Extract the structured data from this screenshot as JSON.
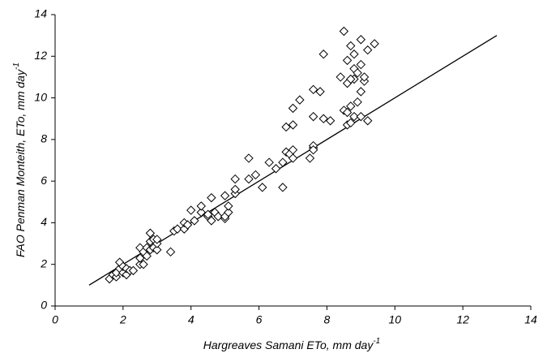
{
  "chart_data": {
    "type": "scatter",
    "xlabel": {
      "text": "Hargreaves Samani ETo, mm day",
      "sup": "-1"
    },
    "ylabel": {
      "text": "FAO Penman Monteith, ETo, mm day",
      "sup": "-1"
    },
    "xlim": [
      0,
      14
    ],
    "ylim": [
      0,
      14
    ],
    "xticks": [
      0,
      2,
      4,
      6,
      8,
      10,
      12,
      14
    ],
    "yticks": [
      0,
      2,
      4,
      6,
      8,
      10,
      12,
      14
    ],
    "marker_color": "#000000",
    "line_color": "#000000",
    "x": [
      1.6,
      1.7,
      1.8,
      1.8,
      1.9,
      1.9,
      2.0,
      2.0,
      2.1,
      2.1,
      2.2,
      2.3,
      2.5,
      2.5,
      2.5,
      2.6,
      2.6,
      2.7,
      2.7,
      2.8,
      2.8,
      2.8,
      2.9,
      2.9,
      3.0,
      3.0,
      3.0,
      3.4,
      3.5,
      3.6,
      3.8,
      3.8,
      3.9,
      4.0,
      4.1,
      4.3,
      4.3,
      4.5,
      4.5,
      4.6,
      4.6,
      4.7,
      4.8,
      5.0,
      5.0,
      5.0,
      5.1,
      5.1,
      5.3,
      5.3,
      5.3,
      5.7,
      5.7,
      5.9,
      6.1,
      6.3,
      6.5,
      6.7,
      6.7,
      6.8,
      6.8,
      6.9,
      7.0,
      7.0,
      7.0,
      7.0,
      7.2,
      7.5,
      7.6,
      7.6,
      7.6,
      7.6,
      7.6,
      7.8,
      7.9,
      7.9,
      8.1,
      8.4,
      8.5,
      8.5,
      8.6,
      8.6,
      8.6,
      8.7,
      8.7,
      8.7,
      8.8,
      8.8,
      8.8,
      8.8,
      8.9,
      8.9,
      9.0,
      9.0,
      9.0,
      9.0,
      9.1,
      9.1,
      9.2,
      9.2,
      9.4,
      8.6,
      8.7
    ],
    "y": [
      1.3,
      1.5,
      1.4,
      1.6,
      1.8,
      2.1,
      1.6,
      1.9,
      1.5,
      1.8,
      1.7,
      1.7,
      2.0,
      2.3,
      2.8,
      2.0,
      2.6,
      2.4,
      2.8,
      2.7,
      3.1,
      3.5,
      2.8,
      3.2,
      2.7,
      3.0,
      3.2,
      2.6,
      3.6,
      3.7,
      3.7,
      4.0,
      3.9,
      4.6,
      4.1,
      4.5,
      4.8,
      4.3,
      4.4,
      4.1,
      5.2,
      4.5,
      4.3,
      4.2,
      4.3,
      5.3,
      4.5,
      4.8,
      5.4,
      5.6,
      6.1,
      6.1,
      7.1,
      6.3,
      5.7,
      6.9,
      6.6,
      5.7,
      6.9,
      7.4,
      8.6,
      7.3,
      7.5,
      8.7,
      7.1,
      9.5,
      9.9,
      7.1,
      7.6,
      7.7,
      7.5,
      10.4,
      9.1,
      10.3,
      9.0,
      12.1,
      8.9,
      11.0,
      13.2,
      9.4,
      11.8,
      8.7,
      10.7,
      12.5,
      9.6,
      8.8,
      12.1,
      11.4,
      10.9,
      9.1,
      11.2,
      9.8,
      12.8,
      11.6,
      10.3,
      9.1,
      10.8,
      11.0,
      12.3,
      8.9,
      12.6,
      9.3,
      10.9
    ],
    "line": {
      "x": [
        1,
        13
      ],
      "y": [
        1,
        13
      ]
    }
  }
}
